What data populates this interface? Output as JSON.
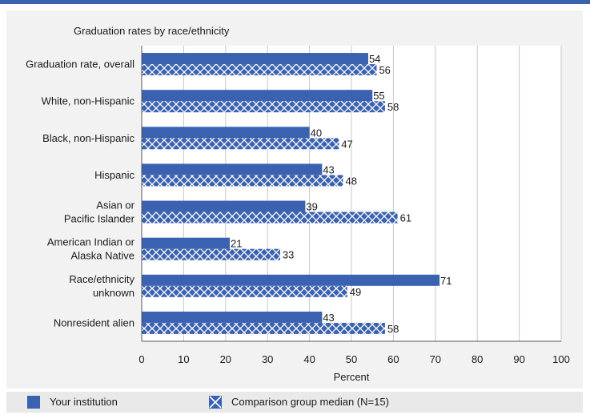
{
  "chart_data": {
    "type": "bar",
    "orientation": "horizontal",
    "title": "Graduation rates by race/ethnicity",
    "xlabel": "Percent",
    "ylabel": "",
    "xlim": [
      0,
      100
    ],
    "xticks": [
      0,
      10,
      20,
      30,
      40,
      50,
      60,
      70,
      80,
      90,
      100
    ],
    "grid": true,
    "legend_position": "bottom",
    "categories": [
      [
        "Graduation rate, overall"
      ],
      [
        "White, non-Hispanic"
      ],
      [
        "Black, non-Hispanic"
      ],
      [
        "Hispanic"
      ],
      [
        "Asian or",
        "Pacific Islander"
      ],
      [
        "American Indian or",
        "Alaska Native"
      ],
      [
        "Race/ethnicity",
        "unknown"
      ],
      [
        "Nonresident alien"
      ]
    ],
    "series": [
      {
        "name": "Your institution",
        "values": [
          54,
          55,
          40,
          43,
          39,
          21,
          71,
          43
        ],
        "color": "#3a62b0",
        "pattern": "solid"
      },
      {
        "name": "Comparison group median (N=15)",
        "values": [
          56,
          58,
          47,
          48,
          61,
          33,
          49,
          58
        ],
        "color": "#3a62b0",
        "pattern": "crosshatch"
      }
    ]
  },
  "legend": {
    "item1": "Your institution",
    "item2": "Comparison group median (N=15)"
  },
  "colors": {
    "accent": "#3a62b0",
    "panel": "#f2f2f2",
    "legend_bg": "#e9e9e9",
    "grid": "#c8c8c8"
  }
}
